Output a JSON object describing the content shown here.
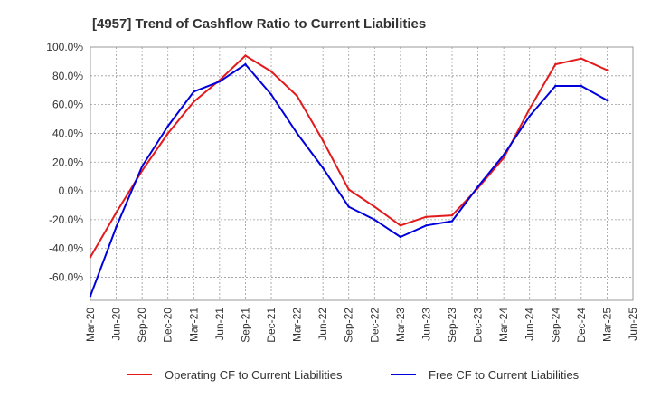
{
  "chart_data": {
    "type": "line",
    "title": "[4957]  Trend of Cashflow Ratio to Current Liabilities",
    "xlabel": "",
    "ylabel": "",
    "ylim": [
      -76,
      100
    ],
    "y_ticks": [
      "100.0%",
      "80.0%",
      "60.0%",
      "40.0%",
      "20.0%",
      "0.0%",
      "-20.0%",
      "-40.0%",
      "-60.0%"
    ],
    "y_tick_values": [
      100,
      80,
      60,
      40,
      20,
      0,
      -20,
      -40,
      -60
    ],
    "x": [
      "Mar-20",
      "Jun-20",
      "Sep-20",
      "Dec-20",
      "Mar-21",
      "Jun-21",
      "Sep-21",
      "Dec-21",
      "Mar-22",
      "Jun-22",
      "Sep-22",
      "Dec-22",
      "Mar-23",
      "Jun-23",
      "Sep-23",
      "Dec-23",
      "Mar-24",
      "Jun-24",
      "Sep-24",
      "Dec-24",
      "Mar-25",
      "Jun-25"
    ],
    "grid": true,
    "legend_position": "bottom",
    "series": [
      {
        "name": "Operating CF to Current Liabilities",
        "color": "#e31a1c",
        "values": [
          -46,
          -15,
          14,
          40,
          62,
          77,
          94,
          83,
          66,
          35,
          1,
          -11,
          -24,
          -18,
          -17,
          2,
          23,
          57,
          88,
          92,
          84,
          null
        ]
      },
      {
        "name": "Free CF to Current Liabilities",
        "color": "#0000dd",
        "values": [
          -73,
          -25,
          17,
          45,
          69,
          76,
          88,
          67,
          40,
          16,
          -11,
          -20,
          -32,
          -24,
          -21,
          3,
          25,
          52,
          73,
          73,
          63,
          null
        ]
      }
    ]
  }
}
